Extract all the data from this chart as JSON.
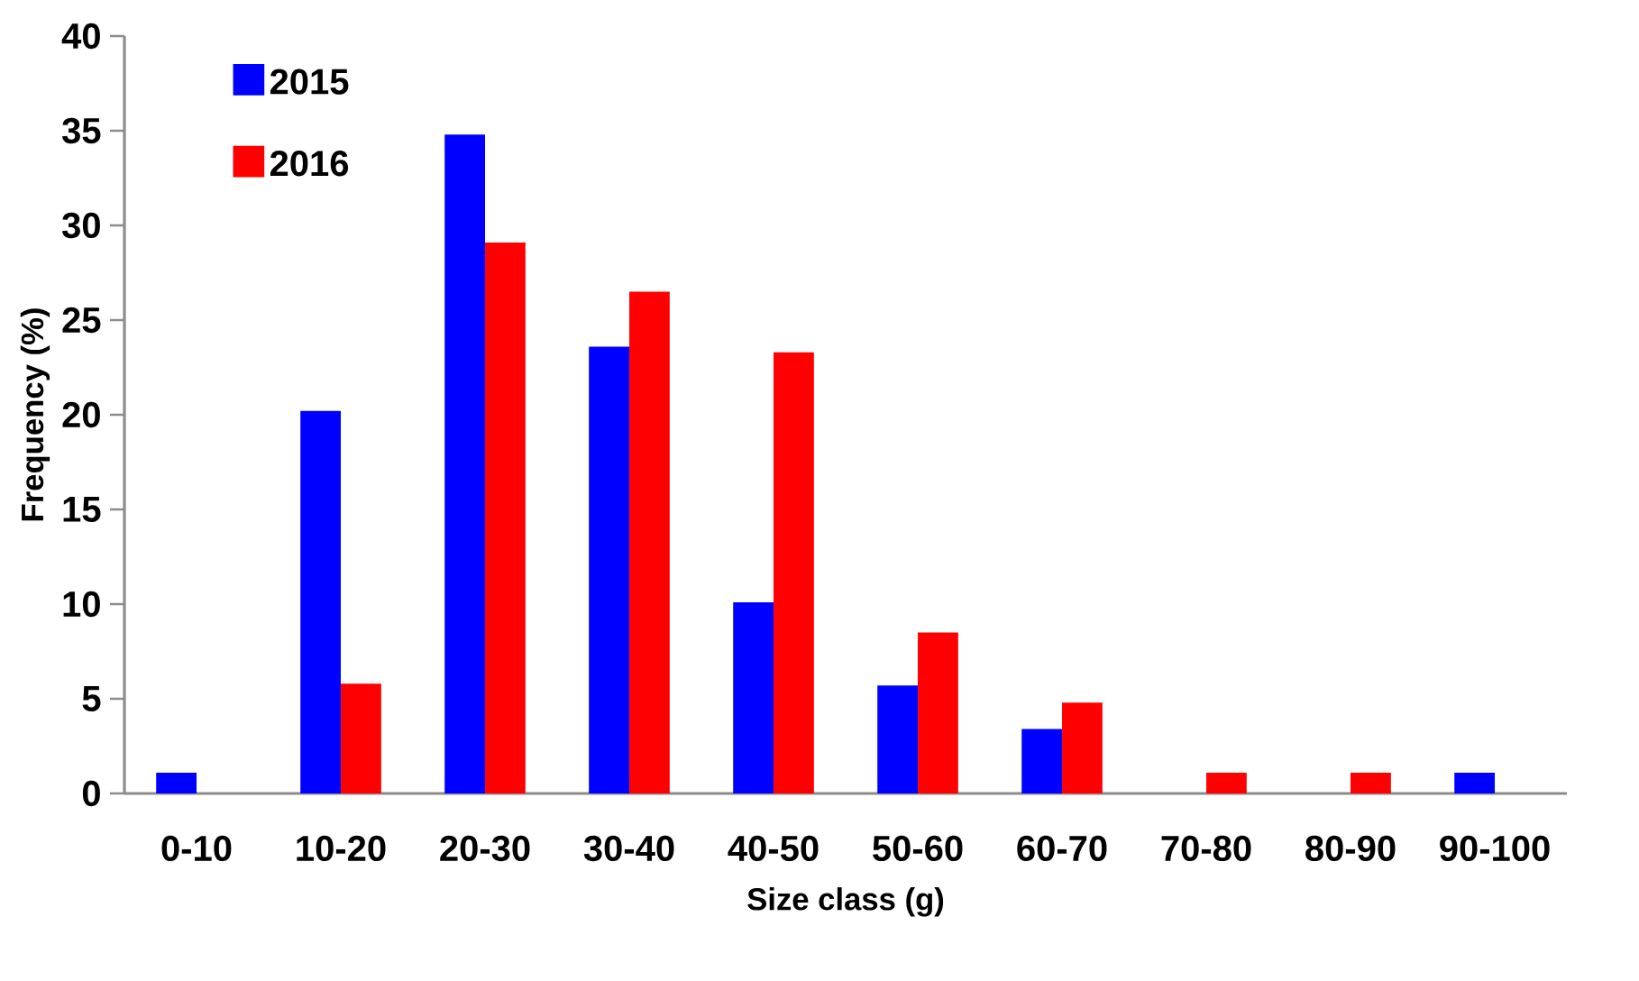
{
  "chart_data": {
    "type": "bar",
    "xlabel": "Size class (g)",
    "ylabel": "Frequency (%)",
    "categories": [
      "0-10",
      "10-20",
      "20-30",
      "30-40",
      "40-50",
      "50-60",
      "60-70",
      "70-80",
      "80-90",
      "90-100"
    ],
    "series": [
      {
        "name": "2015",
        "color": "#0000ff",
        "values": [
          1.1,
          20.2,
          34.8,
          23.6,
          10.1,
          5.7,
          3.4,
          0,
          0,
          1.1
        ]
      },
      {
        "name": "2016",
        "color": "#ff0000",
        "values": [
          0,
          5.8,
          29.1,
          26.5,
          23.3,
          8.5,
          4.8,
          1.1,
          1.1,
          0
        ]
      }
    ],
    "ylim": [
      0,
      40
    ],
    "yticks": [
      0,
      5,
      10,
      15,
      20,
      25,
      30,
      35,
      40
    ],
    "grid": false,
    "legend": "top left"
  }
}
